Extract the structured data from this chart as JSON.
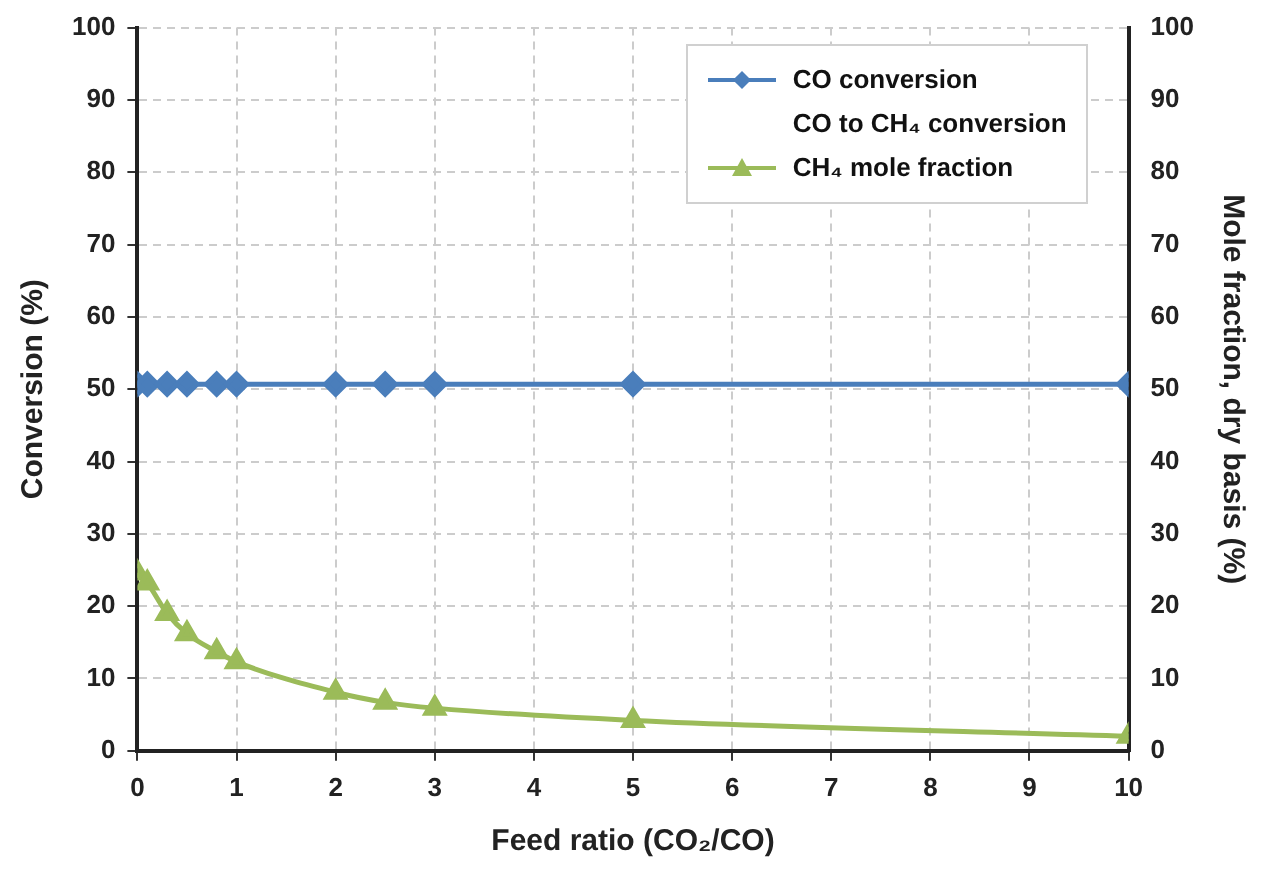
{
  "chart_data": {
    "type": "line",
    "xlabel": "Feed ratio (CO₂/CO)",
    "ylabel": "Conversion (%)",
    "y2label": "Mole fraction, dry basis (%)",
    "x": [
      0,
      0.1,
      0.3,
      0.5,
      0.8,
      1,
      2,
      2.5,
      3,
      5,
      10
    ],
    "series": [
      {
        "name": "CO conversion",
        "color": "#4a7ebb",
        "marker": "diamond",
        "values": [
          50.7,
          50.7,
          50.7,
          50.7,
          50.7,
          50.7,
          50.7,
          50.7,
          50.7,
          50.7,
          50.7
        ]
      },
      {
        "name": "CO to CH₄ conversion",
        "marker": "none",
        "values": [
          null,
          null,
          null,
          null,
          null,
          null,
          null,
          null,
          null,
          null,
          null
        ]
      },
      {
        "name": "CH₄ mole fraction",
        "color": "#9bbb59",
        "marker": "triangle",
        "values": [
          24.6,
          23.2,
          19,
          16.2,
          13.7,
          12.3,
          8.1,
          6.7,
          5.9,
          4.2,
          2.0
        ]
      }
    ],
    "xlim": [
      0,
      10
    ],
    "xticks": [
      0,
      1,
      2,
      3,
      4,
      5,
      6,
      7,
      8,
      9,
      10
    ],
    "ylim": [
      0,
      100
    ],
    "yticks": [
      0,
      10,
      20,
      30,
      40,
      50,
      60,
      70,
      80,
      90,
      100
    ],
    "y2lim": [
      0,
      100
    ],
    "y2ticks": [
      0,
      10,
      20,
      30,
      40,
      50,
      60,
      70,
      80,
      90,
      100
    ],
    "grid": true,
    "legend": "top right"
  }
}
